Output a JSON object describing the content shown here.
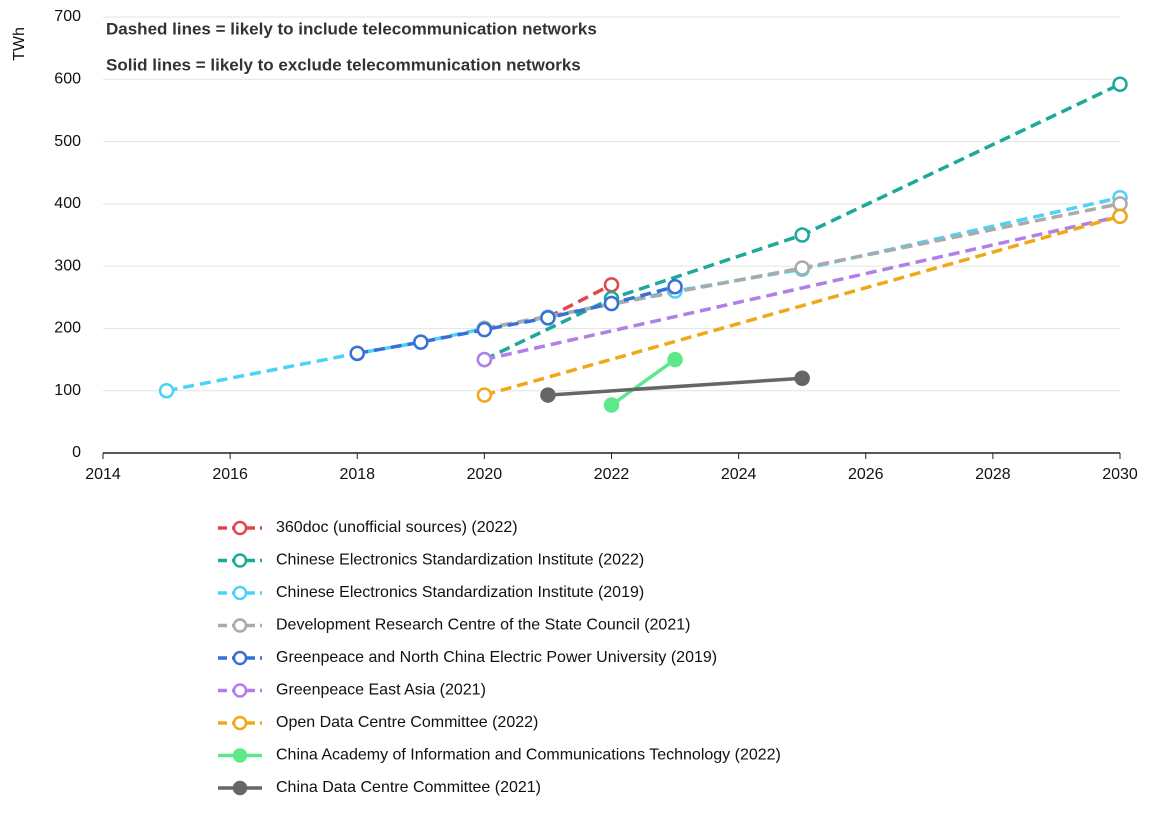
{
  "chart_data": {
    "type": "line",
    "annotations": [
      "Dashed lines = likely to include telecommunication networks",
      "Solid lines = likely to exclude telecommunication networks"
    ],
    "y_label": "TWh",
    "xlim": [
      2014,
      2030
    ],
    "xticks": [
      2014,
      2016,
      2018,
      2020,
      2022,
      2024,
      2026,
      2028,
      2030
    ],
    "ylim": [
      0,
      700
    ],
    "yticks": [
      0,
      100,
      200,
      300,
      400,
      500,
      600,
      700
    ],
    "grid": true,
    "legend": "bottom",
    "series": [
      {
        "name": "360doc (unofficial sources) (2022)",
        "color": "#e0474c",
        "dashed": true,
        "marker": "open",
        "x": [
          2021,
          2022
        ],
        "values": [
          218,
          270
        ]
      },
      {
        "name": "Chinese Electronics Standardization Institute (2022)",
        "color": "#1aa99a",
        "dashed": true,
        "marker": "open",
        "x": [
          2020,
          2022,
          2025,
          2030
        ],
        "values": [
          150,
          248,
          350,
          592
        ]
      },
      {
        "name": "Chinese Electronics Standardization Institute (2019)",
        "color": "#4dd2f7",
        "dashed": true,
        "marker": "open",
        "x": [
          2015,
          2018,
          2019,
          2020,
          2021,
          2022,
          2023,
          2025,
          2030
        ],
        "values": [
          100,
          160,
          178,
          200,
          218,
          240,
          260,
          295,
          410
        ]
      },
      {
        "name": "Development Research Centre of the State Council (2021)",
        "color": "#aaaaaa",
        "dashed": true,
        "marker": "open",
        "x": [
          2020,
          2025,
          2030
        ],
        "values": [
          200,
          297,
          400
        ]
      },
      {
        "name": "Greenpeace and North China Electric Power University (2019)",
        "color": "#3a6fd8",
        "dashed": true,
        "marker": "open",
        "x": [
          2018,
          2019,
          2020,
          2021,
          2022,
          2023
        ],
        "values": [
          160,
          178,
          198,
          217,
          240,
          267
        ]
      },
      {
        "name": "Greenpeace East Asia (2021)",
        "color": "#b07fe8",
        "dashed": true,
        "marker": "open",
        "x": [
          2020,
          2030
        ],
        "values": [
          150,
          380
        ]
      },
      {
        "name": "Open Data Centre Committee (2022)",
        "color": "#f0a818",
        "dashed": true,
        "marker": "open",
        "x": [
          2020,
          2030
        ],
        "values": [
          93,
          380
        ]
      },
      {
        "name": "China Academy of Information and Communications Technology (2022)",
        "color": "#5ee88a",
        "dashed": false,
        "marker": "filled",
        "x": [
          2022,
          2023
        ],
        "values": [
          77,
          150
        ]
      },
      {
        "name": "China Data Centre Committee (2021)",
        "color": "#666666",
        "dashed": false,
        "marker": "filled",
        "x": [
          2021,
          2025
        ],
        "values": [
          93,
          120
        ]
      }
    ]
  }
}
